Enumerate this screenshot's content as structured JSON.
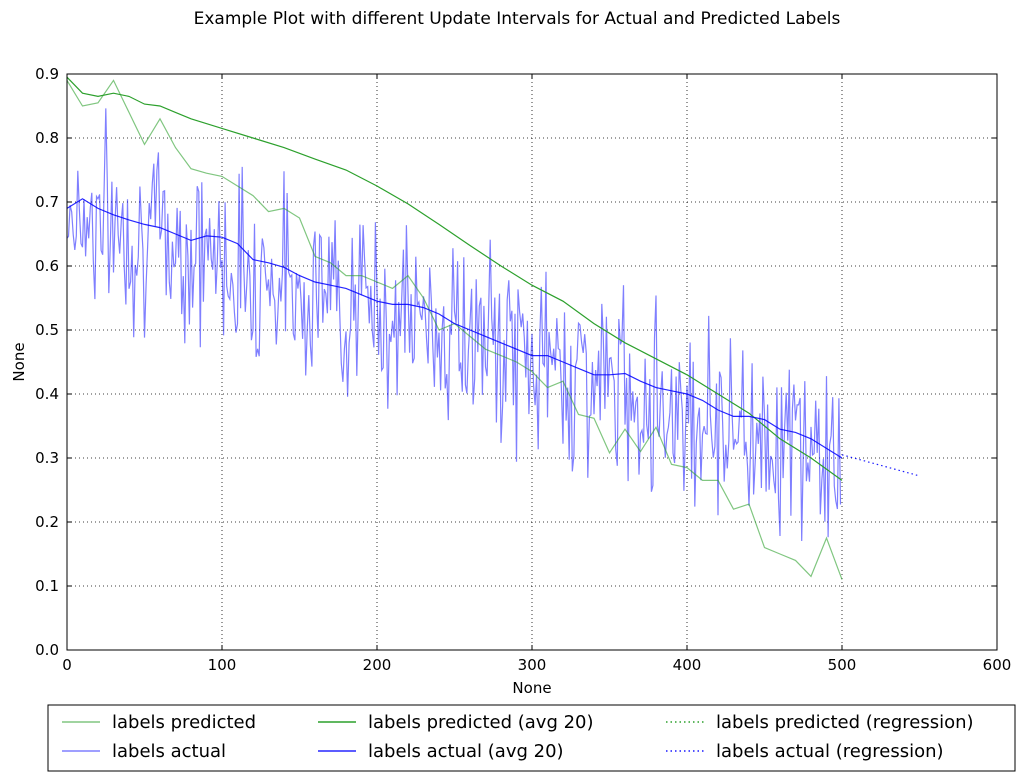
{
  "chart_data": {
    "type": "line",
    "title": "Example Plot with different Update Intervals for Actual and Predicted Labels",
    "xlabel": "None",
    "ylabel": "None",
    "xlim": [
      0,
      600
    ],
    "ylim": [
      0.0,
      0.9
    ],
    "xticks": [
      "0",
      "100",
      "200",
      "300",
      "400",
      "500",
      "600"
    ],
    "yticks": [
      "0.0",
      "0.1",
      "0.2",
      "0.3",
      "0.4",
      "0.5",
      "0.6",
      "0.7",
      "0.8",
      "0.9"
    ],
    "grid": true,
    "legend_position": "bottom, outside axes, 3 columns",
    "series": [
      {
        "name": "labels predicted",
        "color": "#2ca02c",
        "alpha": 0.6,
        "style": "solid",
        "x": [
          0,
          10,
          20,
          30,
          40,
          50,
          60,
          70,
          80,
          90,
          100,
          110,
          120,
          130,
          140,
          150,
          160,
          170,
          180,
          190,
          200,
          210,
          220,
          230,
          240,
          250,
          260,
          270,
          280,
          290,
          300,
          310,
          320,
          330,
          340,
          350,
          360,
          370,
          380,
          390,
          400,
          410,
          420,
          430,
          440,
          450,
          460,
          470,
          480,
          490,
          500
        ],
        "y": [
          0.89,
          0.85,
          0.855,
          0.89,
          0.84,
          0.79,
          0.83,
          0.785,
          0.752,
          0.745,
          0.74,
          0.725,
          0.71,
          0.685,
          0.69,
          0.675,
          0.615,
          0.605,
          0.585,
          0.585,
          0.575,
          0.565,
          0.585,
          0.55,
          0.5,
          0.51,
          0.49,
          0.47,
          0.46,
          0.45,
          0.435,
          0.41,
          0.42,
          0.368,
          0.362,
          0.308,
          0.345,
          0.31,
          0.348,
          0.29,
          0.285,
          0.265,
          0.265,
          0.22,
          0.228,
          0.16,
          0.15,
          0.14,
          0.115,
          0.175,
          0.11
        ]
      },
      {
        "name": "labels actual",
        "color": "#0000ff",
        "alpha": 0.5,
        "style": "solid",
        "generator": {
          "start": 0.69,
          "end": 0.3,
          "noise": 0.07,
          "count": 500,
          "seed": 7
        }
      },
      {
        "name": "labels predicted (avg 20)",
        "color": "#2ca02c",
        "alpha": 1.0,
        "style": "solid",
        "x": [
          0,
          10,
          20,
          30,
          40,
          50,
          60,
          70,
          80,
          100,
          120,
          140,
          160,
          180,
          200,
          220,
          240,
          260,
          280,
          300,
          320,
          340,
          360,
          380,
          400,
          420,
          440,
          460,
          480,
          500
        ],
        "y": [
          0.895,
          0.87,
          0.865,
          0.87,
          0.865,
          0.853,
          0.85,
          0.84,
          0.83,
          0.815,
          0.8,
          0.785,
          0.767,
          0.75,
          0.725,
          0.697,
          0.665,
          0.632,
          0.6,
          0.57,
          0.545,
          0.51,
          0.48,
          0.455,
          0.43,
          0.4,
          0.37,
          0.33,
          0.3,
          0.265
        ]
      },
      {
        "name": "labels actual (avg 20)",
        "color": "#0000ff",
        "alpha": 0.85,
        "style": "solid",
        "x": [
          0,
          10,
          20,
          30,
          40,
          50,
          60,
          70,
          80,
          90,
          100,
          110,
          120,
          130,
          140,
          150,
          160,
          170,
          180,
          190,
          200,
          210,
          220,
          230,
          240,
          250,
          260,
          270,
          280,
          290,
          300,
          310,
          320,
          330,
          340,
          350,
          360,
          370,
          380,
          390,
          400,
          410,
          420,
          430,
          440,
          450,
          460,
          470,
          480,
          490,
          500
        ],
        "y": [
          0.69,
          0.705,
          0.69,
          0.68,
          0.672,
          0.665,
          0.66,
          0.65,
          0.64,
          0.647,
          0.645,
          0.635,
          0.61,
          0.605,
          0.598,
          0.585,
          0.575,
          0.57,
          0.565,
          0.555,
          0.545,
          0.54,
          0.54,
          0.535,
          0.525,
          0.51,
          0.5,
          0.49,
          0.48,
          0.47,
          0.46,
          0.46,
          0.45,
          0.44,
          0.43,
          0.43,
          0.432,
          0.42,
          0.41,
          0.405,
          0.4,
          0.39,
          0.375,
          0.365,
          0.365,
          0.36,
          0.345,
          0.34,
          0.33,
          0.315,
          0.3
        ]
      },
      {
        "name": "labels predicted (regression)",
        "color": "#2ca02c",
        "alpha": 1.0,
        "style": "dotted",
        "x": [],
        "y": []
      },
      {
        "name": "labels actual (regression)",
        "color": "#0000ff",
        "alpha": 0.9,
        "style": "dotted",
        "x": [
          500,
          550
        ],
        "y": [
          0.305,
          0.272
        ]
      }
    ]
  }
}
